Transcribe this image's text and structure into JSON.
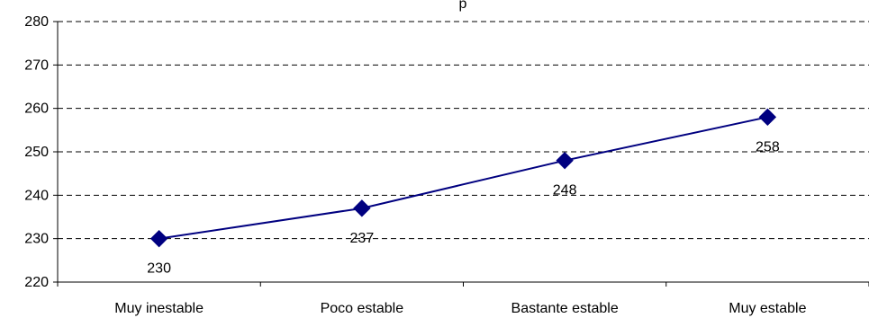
{
  "chart_data": {
    "type": "line",
    "title": "p",
    "xlabel": "",
    "ylabel": "",
    "categories": [
      "Muy inestable",
      "Poco estable",
      "Bastante estable",
      "Muy estable"
    ],
    "series": [
      {
        "values": [
          230,
          237,
          248,
          258
        ],
        "color": "#000080"
      }
    ],
    "ylim": [
      220,
      280
    ],
    "yticks": [
      220,
      230,
      240,
      250,
      260,
      270,
      280
    ],
    "ytick_labels": [
      "220",
      "230",
      "240",
      "250",
      "260",
      "270",
      "280"
    ],
    "data_labels": [
      "230",
      "237",
      "248",
      "258"
    ],
    "grid": true,
    "marker": "diamond"
  }
}
